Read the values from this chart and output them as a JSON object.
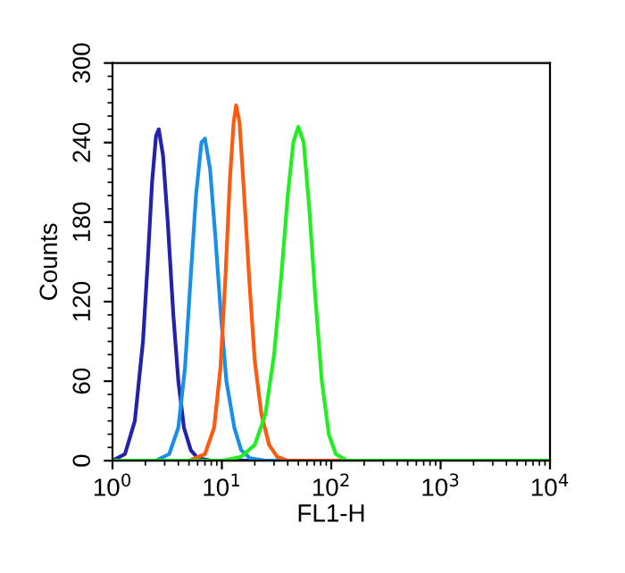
{
  "chart_data": {
    "type": "line",
    "xlabel": "FL1-H",
    "ylabel": "Counts",
    "log": "x",
    "xlim": [
      1,
      10000
    ],
    "ylim": [
      0,
      300
    ],
    "xticks": [
      {
        "value": 1,
        "label": "10$^{0}$"
      },
      {
        "value": 10,
        "label": "10$^{1}$"
      },
      {
        "value": 100,
        "label": "10$^{2}$"
      },
      {
        "value": 1000,
        "label": "10$^{3}$"
      },
      {
        "value": 10000,
        "label": "10$^{4}$"
      }
    ],
    "yticks": [
      0,
      60,
      120,
      180,
      240,
      300
    ],
    "grid": false,
    "legend": false,
    "marker": "none",
    "line_style": "solid",
    "series": [
      {
        "color": "#2222aa",
        "x": [
          1,
          1.3,
          1.6,
          1.9,
          2.1,
          2.3,
          2.5,
          2.65,
          2.9,
          3.2,
          3.6,
          4.0,
          4.5,
          5.2,
          6,
          8,
          10000
        ],
        "values": [
          0,
          5,
          30,
          90,
          150,
          210,
          245,
          250,
          230,
          180,
          110,
          60,
          25,
          8,
          2,
          0,
          0
        ]
      },
      {
        "color": "#1a8fe8",
        "x": [
          1,
          2.5,
          3.3,
          4,
          4.6,
          5.2,
          5.8,
          6.5,
          7.0,
          7.8,
          8.7,
          9.8,
          11,
          13,
          15,
          18,
          25,
          10000
        ],
        "values": [
          0,
          0,
          5,
          25,
          70,
          140,
          200,
          240,
          243,
          220,
          170,
          110,
          60,
          25,
          8,
          2,
          0,
          0
        ]
      },
      {
        "color": "#ff5a10",
        "x": [
          1,
          5,
          7,
          8.5,
          9.7,
          10.8,
          11.8,
          12.8,
          13.5,
          14.5,
          16,
          18,
          20,
          23,
          27,
          32,
          40,
          10000
        ],
        "values": [
          0,
          0,
          5,
          25,
          70,
          140,
          210,
          255,
          268,
          255,
          200,
          130,
          75,
          35,
          12,
          3,
          0,
          0
        ]
      },
      {
        "color": "#22ee22",
        "x": [
          1,
          10,
          15,
          20,
          25,
          30,
          35,
          40,
          45,
          50,
          56,
          63,
          72,
          82,
          95,
          110,
          140,
          10000
        ],
        "values": [
          0,
          0,
          3,
          12,
          35,
          80,
          140,
          200,
          240,
          252,
          240,
          190,
          120,
          60,
          20,
          5,
          0,
          0
        ]
      }
    ]
  }
}
